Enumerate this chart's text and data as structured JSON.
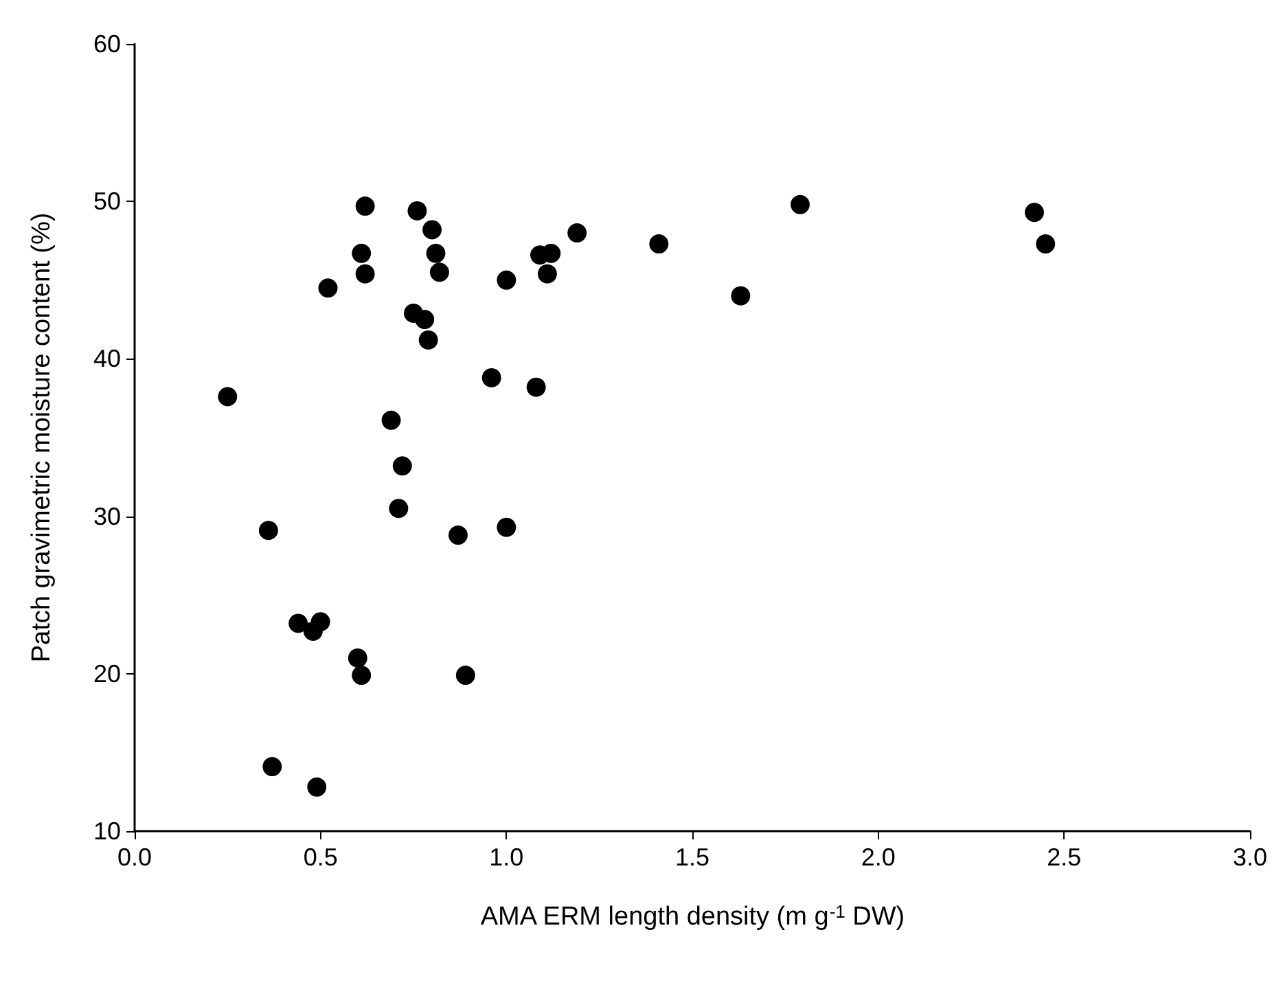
{
  "chart_data": {
    "type": "scatter",
    "xlabel": "AMA ERM length density (m g$^{-1}$ DW)",
    "ylabel": "Patch gravimetric moisture content (%)",
    "x": [
      0.25,
      0.36,
      0.37,
      0.44,
      0.48,
      0.5,
      0.49,
      0.52,
      0.61,
      0.62,
      0.62,
      0.6,
      0.61,
      0.69,
      0.72,
      0.71,
      0.75,
      0.76,
      0.78,
      0.79,
      0.8,
      0.81,
      0.82,
      0.87,
      0.89,
      0.96,
      1.0,
      1.0,
      1.08,
      1.09,
      1.11,
      1.12,
      1.19,
      1.41,
      1.63,
      1.79,
      2.42,
      2.45
    ],
    "values": [
      37.6,
      29.1,
      14.1,
      23.2,
      22.7,
      23.3,
      12.8,
      44.5,
      46.7,
      45.4,
      49.7,
      21.0,
      19.9,
      36.1,
      33.2,
      30.5,
      42.9,
      49.4,
      42.5,
      41.2,
      48.2,
      46.7,
      45.5,
      28.8,
      19.9,
      38.8,
      45.0,
      29.3,
      38.2,
      46.6,
      45.4,
      46.7,
      48.0,
      47.3,
      44.0,
      49.8,
      49.3,
      47.3
    ],
    "color": "#000000",
    "marker": "circle",
    "grid": false,
    "xlim": [
      0,
      3
    ],
    "xticks": [
      {
        "value": 0,
        "label": "0.0"
      },
      {
        "value": 0.5,
        "label": "0.5"
      },
      {
        "value": 1,
        "label": "1.0"
      },
      {
        "value": 1.5,
        "label": "1.5"
      },
      {
        "value": 2,
        "label": "2.0"
      },
      {
        "value": 2.5,
        "label": "2.5"
      },
      {
        "value": 3,
        "label": "3.0"
      }
    ],
    "ylim": [
      10,
      60
    ],
    "yticks": [
      10,
      20,
      30,
      40,
      50,
      60
    ]
  }
}
